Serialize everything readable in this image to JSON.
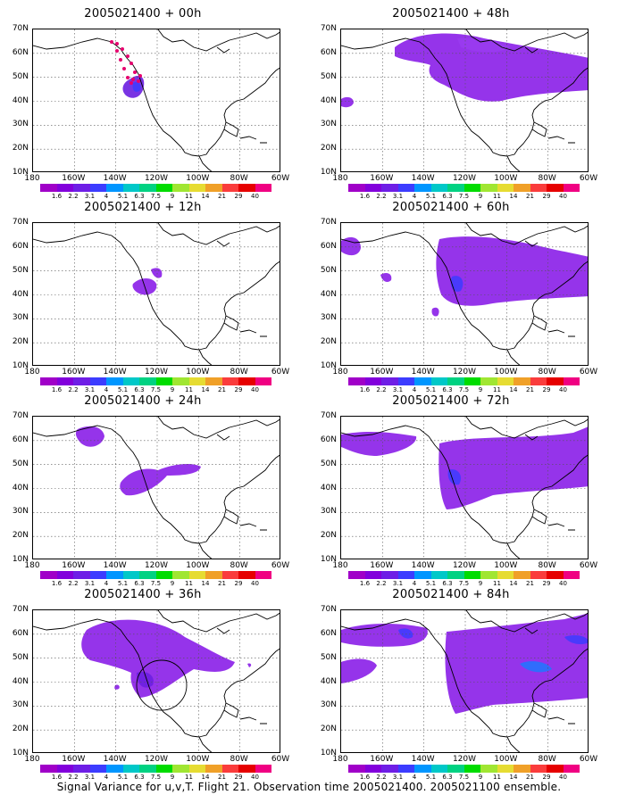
{
  "panels": [
    {
      "title": "2005021400 + 00h",
      "lead": "00h"
    },
    {
      "title": "2005021400 + 48h",
      "lead": "48h"
    },
    {
      "title": "2005021400 + 12h",
      "lead": "12h"
    },
    {
      "title": "2005021400 + 60h",
      "lead": "60h"
    },
    {
      "title": "2005021400 + 24h",
      "lead": "24h"
    },
    {
      "title": "2005021400 + 72h",
      "lead": "72h"
    },
    {
      "title": "2005021400 + 36h",
      "lead": "36h"
    },
    {
      "title": "2005021400 + 84h",
      "lead": "84h"
    }
  ],
  "axes": {
    "lat_labels": [
      "70N",
      "60N",
      "50N",
      "40N",
      "30N",
      "20N",
      "10N"
    ],
    "lon_labels": [
      "180",
      "160W",
      "140W",
      "120W",
      "100W",
      "80W",
      "60W"
    ]
  },
  "colorbar": {
    "labels": [
      "1.6",
      "2.2",
      "3.1",
      "4",
      "5.1",
      "6.3",
      "7.5",
      "9",
      "11",
      "14",
      "21",
      "29",
      "40"
    ],
    "colors": [
      "#a000c8",
      "#8200dc",
      "#6e1ee6",
      "#3c3cff",
      "#0096ff",
      "#00c8c8",
      "#00d282",
      "#00dc00",
      "#a0e632",
      "#e6dc32",
      "#f0a028",
      "#fa3c3c",
      "#e60000",
      "#f00082"
    ]
  },
  "caption": "Signal Variance for u,v,T. Flight 21. Observation time 2005021400. 2005021100 ensemble."
}
